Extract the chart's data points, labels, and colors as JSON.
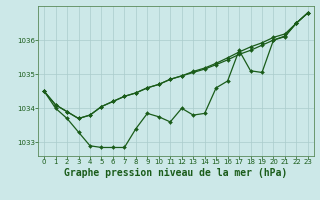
{
  "title": "Graphe pression niveau de la mer (hPa)",
  "bg_color": "#cce8e8",
  "line_color": "#1a5c1a",
  "grid_color": "#aacccc",
  "ylim": [
    1032.6,
    1037.0
  ],
  "xlim": [
    -0.5,
    23.5
  ],
  "yticks": [
    1033,
    1034,
    1035,
    1036
  ],
  "xticks": [
    0,
    1,
    2,
    3,
    4,
    5,
    6,
    7,
    8,
    9,
    10,
    11,
    12,
    13,
    14,
    15,
    16,
    17,
    18,
    19,
    20,
    21,
    22,
    23
  ],
  "series_wavy": [
    1034.5,
    1034.0,
    1033.7,
    1033.3,
    1032.9,
    1032.85,
    1032.85,
    1032.85,
    1033.4,
    1033.85,
    1033.75,
    1033.6,
    1034.0,
    1033.8,
    1033.85,
    1034.6,
    1034.8,
    1035.7,
    1035.1,
    1035.05,
    1036.0,
    1036.1,
    1036.5,
    1036.8
  ],
  "series_line1": [
    1034.5,
    1034.1,
    1033.9,
    1033.7,
    1033.8,
    1034.05,
    1034.2,
    1034.35,
    1034.45,
    1034.6,
    1034.7,
    1034.85,
    1034.95,
    1035.05,
    1035.15,
    1035.28,
    1035.42,
    1035.58,
    1035.7,
    1035.85,
    1036.0,
    1036.12,
    1036.5,
    1036.8
  ],
  "series_line2": [
    1034.5,
    1034.1,
    1033.9,
    1033.7,
    1033.8,
    1034.05,
    1034.2,
    1034.35,
    1034.45,
    1034.6,
    1034.7,
    1034.85,
    1034.95,
    1035.08,
    1035.18,
    1035.32,
    1035.48,
    1035.65,
    1035.8,
    1035.92,
    1036.08,
    1036.18,
    1036.5,
    1036.8
  ],
  "marker": "D",
  "markersize": 2.0,
  "linewidth": 0.9,
  "title_fontsize": 7,
  "tick_fontsize": 5,
  "tick_color": "#1a5c1a",
  "axis_color": "#5a8a5a"
}
